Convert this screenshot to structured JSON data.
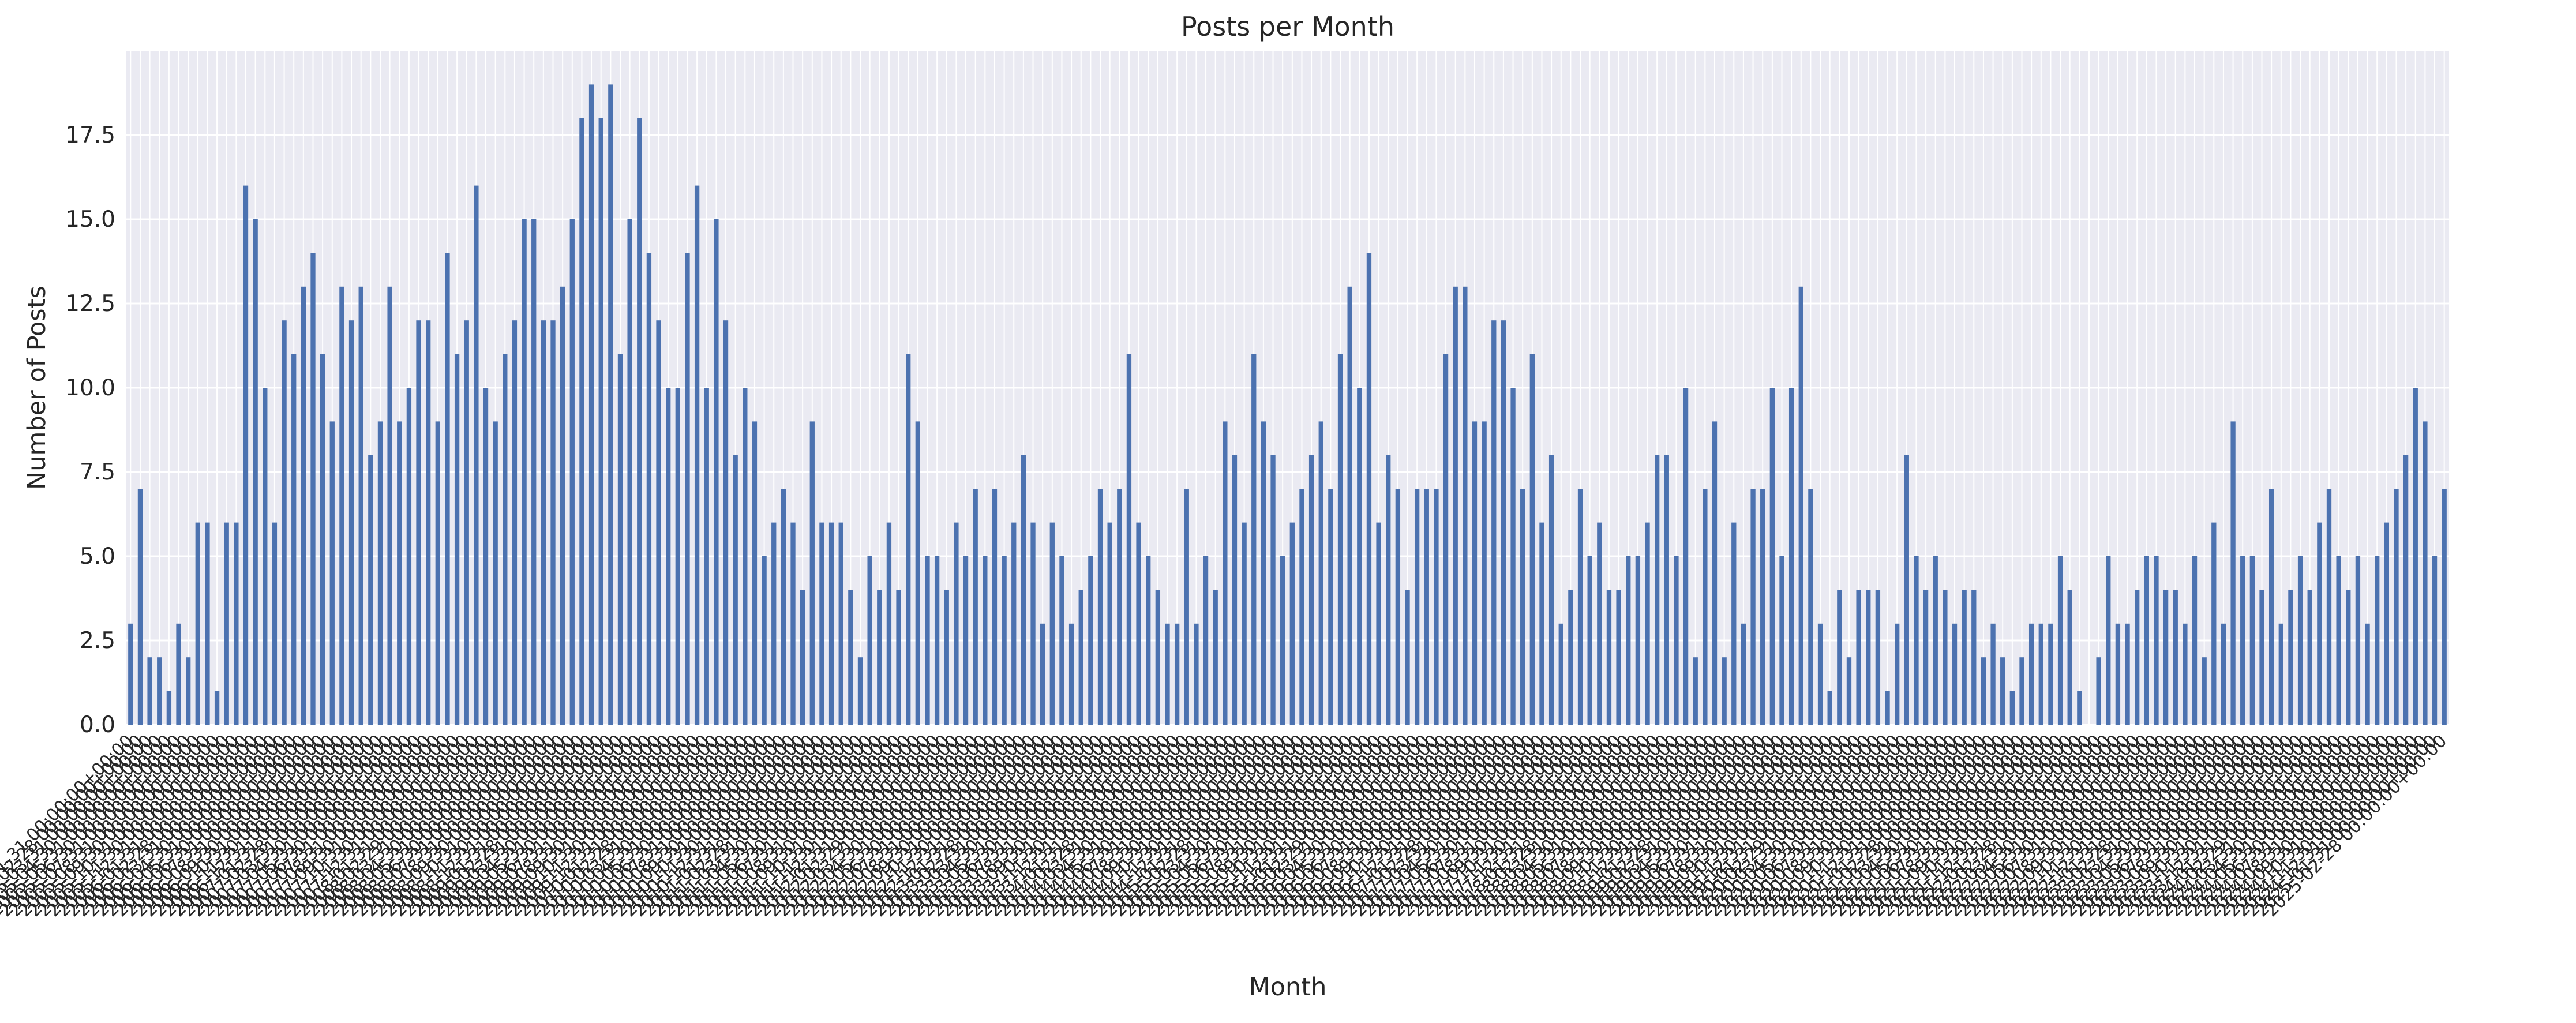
{
  "chart_data": {
    "type": "bar",
    "title": "Posts per Month",
    "xlabel": "Month",
    "ylabel": "Number of Posts",
    "ylim": [
      0,
      20
    ],
    "yticks": [
      0.0,
      2.5,
      5.0,
      7.5,
      10.0,
      12.5,
      15.0,
      17.5
    ],
    "ytick_labels": [
      "0.0",
      "2.5",
      "5.0",
      "7.5",
      "10.0",
      "12.5",
      "15.0",
      "17.5"
    ],
    "x_label_rotation_deg": 45,
    "grid": true,
    "background": "#eaeaf2",
    "bar_color": "#4c72b0",
    "categories": [
      "2005-01-31 00:00:00+00:00",
      "2005-02-28 00:00:00+00:00",
      "2005-03-31 00:00:00+00:00",
      "2005-04-30 00:00:00+00:00",
      "2005-05-31 00:00:00+00:00",
      "2005-06-30 00:00:00+00:00",
      "2005-07-31 00:00:00+00:00",
      "2005-08-31 00:00:00+00:00",
      "2005-09-30 00:00:00+00:00",
      "2005-10-31 00:00:00+00:00",
      "2005-11-30 00:00:00+00:00",
      "2005-12-31 00:00:00+00:00",
      "2006-01-31 00:00:00+00:00",
      "2006-02-28 00:00:00+00:00",
      "2006-03-31 00:00:00+00:00",
      "2006-04-30 00:00:00+00:00",
      "2006-05-31 00:00:00+00:00",
      "2006-06-30 00:00:00+00:00",
      "2006-07-31 00:00:00+00:00",
      "2006-08-31 00:00:00+00:00",
      "2006-09-30 00:00:00+00:00",
      "2006-10-31 00:00:00+00:00",
      "2006-11-30 00:00:00+00:00",
      "2006-12-31 00:00:00+00:00",
      "2007-01-31 00:00:00+00:00",
      "2007-02-28 00:00:00+00:00",
      "2007-03-31 00:00:00+00:00",
      "2007-04-30 00:00:00+00:00",
      "2007-05-31 00:00:00+00:00",
      "2007-06-30 00:00:00+00:00",
      "2007-07-31 00:00:00+00:00",
      "2007-08-31 00:00:00+00:00",
      "2007-09-30 00:00:00+00:00",
      "2007-10-31 00:00:00+00:00",
      "2007-11-30 00:00:00+00:00",
      "2007-12-31 00:00:00+00:00",
      "2008-01-31 00:00:00+00:00",
      "2008-02-29 00:00:00+00:00",
      "2008-03-31 00:00:00+00:00",
      "2008-04-30 00:00:00+00:00",
      "2008-05-31 00:00:00+00:00",
      "2008-06-30 00:00:00+00:00",
      "2008-07-31 00:00:00+00:00",
      "2008-08-31 00:00:00+00:00",
      "2008-09-30 00:00:00+00:00",
      "2008-10-31 00:00:00+00:00",
      "2008-11-30 00:00:00+00:00",
      "2008-12-31 00:00:00+00:00",
      "2009-01-31 00:00:00+00:00",
      "2009-02-28 00:00:00+00:00",
      "2009-03-31 00:00:00+00:00",
      "2009-04-30 00:00:00+00:00",
      "2009-05-31 00:00:00+00:00",
      "2009-06-30 00:00:00+00:00",
      "2009-07-31 00:00:00+00:00",
      "2009-08-31 00:00:00+00:00",
      "2009-09-30 00:00:00+00:00",
      "2009-10-31 00:00:00+00:00",
      "2009-11-30 00:00:00+00:00",
      "2009-12-31 00:00:00+00:00",
      "2010-01-31 00:00:00+00:00",
      "2010-02-28 00:00:00+00:00",
      "2010-03-31 00:00:00+00:00",
      "2010-04-30 00:00:00+00:00",
      "2010-05-31 00:00:00+00:00",
      "2010-06-30 00:00:00+00:00",
      "2010-07-31 00:00:00+00:00",
      "2010-08-31 00:00:00+00:00",
      "2010-09-30 00:00:00+00:00",
      "2010-10-31 00:00:00+00:00",
      "2010-11-30 00:00:00+00:00",
      "2010-12-31 00:00:00+00:00",
      "2011-01-31 00:00:00+00:00",
      "2011-02-28 00:00:00+00:00",
      "2011-03-31 00:00:00+00:00",
      "2011-04-30 00:00:00+00:00",
      "2011-05-31 00:00:00+00:00",
      "2011-06-30 00:00:00+00:00",
      "2011-07-31 00:00:00+00:00",
      "2011-08-31 00:00:00+00:00",
      "2011-09-30 00:00:00+00:00",
      "2011-10-31 00:00:00+00:00",
      "2011-11-30 00:00:00+00:00",
      "2011-12-31 00:00:00+00:00",
      "2012-01-31 00:00:00+00:00",
      "2012-02-29 00:00:00+00:00",
      "2012-03-31 00:00:00+00:00",
      "2012-04-30 00:00:00+00:00",
      "2012-05-31 00:00:00+00:00",
      "2012-06-30 00:00:00+00:00",
      "2012-07-31 00:00:00+00:00",
      "2012-08-31 00:00:00+00:00",
      "2012-09-30 00:00:00+00:00",
      "2012-10-31 00:00:00+00:00",
      "2012-11-30 00:00:00+00:00",
      "2012-12-31 00:00:00+00:00",
      "2013-01-31 00:00:00+00:00",
      "2013-02-28 00:00:00+00:00",
      "2013-03-31 00:00:00+00:00",
      "2013-04-30 00:00:00+00:00",
      "2013-05-31 00:00:00+00:00",
      "2013-06-30 00:00:00+00:00",
      "2013-07-31 00:00:00+00:00",
      "2013-08-31 00:00:00+00:00",
      "2013-09-30 00:00:00+00:00",
      "2013-10-31 00:00:00+00:00",
      "2013-11-30 00:00:00+00:00",
      "2013-12-31 00:00:00+00:00",
      "2014-01-31 00:00:00+00:00",
      "2014-02-28 00:00:00+00:00",
      "2014-03-31 00:00:00+00:00",
      "2014-04-30 00:00:00+00:00",
      "2014-05-31 00:00:00+00:00",
      "2014-06-30 00:00:00+00:00",
      "2014-07-31 00:00:00+00:00",
      "2014-08-31 00:00:00+00:00",
      "2014-09-30 00:00:00+00:00",
      "2014-10-31 00:00:00+00:00",
      "2014-11-30 00:00:00+00:00",
      "2014-12-31 00:00:00+00:00",
      "2015-01-31 00:00:00+00:00",
      "2015-02-28 00:00:00+00:00",
      "2015-03-31 00:00:00+00:00",
      "2015-04-30 00:00:00+00:00",
      "2015-05-31 00:00:00+00:00",
      "2015-06-30 00:00:00+00:00",
      "2015-07-31 00:00:00+00:00",
      "2015-08-31 00:00:00+00:00",
      "2015-09-30 00:00:00+00:00",
      "2015-10-31 00:00:00+00:00",
      "2015-11-30 00:00:00+00:00",
      "2015-12-31 00:00:00+00:00",
      "2016-01-31 00:00:00+00:00",
      "2016-02-29 00:00:00+00:00",
      "2016-03-31 00:00:00+00:00",
      "2016-04-30 00:00:00+00:00",
      "2016-05-31 00:00:00+00:00",
      "2016-06-30 00:00:00+00:00",
      "2016-07-31 00:00:00+00:00",
      "2016-08-31 00:00:00+00:00",
      "2016-09-30 00:00:00+00:00",
      "2016-10-31 00:00:00+00:00",
      "2016-11-30 00:00:00+00:00",
      "2016-12-31 00:00:00+00:00",
      "2017-01-31 00:00:00+00:00",
      "2017-02-28 00:00:00+00:00",
      "2017-03-31 00:00:00+00:00",
      "2017-04-30 00:00:00+00:00",
      "2017-05-31 00:00:00+00:00",
      "2017-06-30 00:00:00+00:00",
      "2017-07-31 00:00:00+00:00",
      "2017-08-31 00:00:00+00:00",
      "2017-09-30 00:00:00+00:00",
      "2017-10-31 00:00:00+00:00",
      "2017-11-30 00:00:00+00:00",
      "2017-12-31 00:00:00+00:00",
      "2018-01-31 00:00:00+00:00",
      "2018-02-28 00:00:00+00:00",
      "2018-03-31 00:00:00+00:00",
      "2018-04-30 00:00:00+00:00",
      "2018-05-31 00:00:00+00:00",
      "2018-06-30 00:00:00+00:00",
      "2018-07-31 00:00:00+00:00",
      "2018-08-31 00:00:00+00:00",
      "2018-09-30 00:00:00+00:00",
      "2018-10-31 00:00:00+00:00",
      "2018-11-30 00:00:00+00:00",
      "2018-12-31 00:00:00+00:00",
      "2019-01-31 00:00:00+00:00",
      "2019-02-28 00:00:00+00:00",
      "2019-03-31 00:00:00+00:00",
      "2019-04-30 00:00:00+00:00",
      "2019-05-31 00:00:00+00:00",
      "2019-06-30 00:00:00+00:00",
      "2019-07-31 00:00:00+00:00",
      "2019-08-31 00:00:00+00:00",
      "2019-09-30 00:00:00+00:00",
      "2019-10-31 00:00:00+00:00",
      "2019-11-30 00:00:00+00:00",
      "2019-12-31 00:00:00+00:00",
      "2020-01-31 00:00:00+00:00",
      "2020-02-29 00:00:00+00:00",
      "2020-03-31 00:00:00+00:00",
      "2020-04-30 00:00:00+00:00",
      "2020-05-31 00:00:00+00:00",
      "2020-06-30 00:00:00+00:00",
      "2020-07-31 00:00:00+00:00",
      "2020-08-31 00:00:00+00:00",
      "2020-09-30 00:00:00+00:00",
      "2020-10-31 00:00:00+00:00",
      "2020-11-30 00:00:00+00:00",
      "2020-12-31 00:00:00+00:00",
      "2021-01-31 00:00:00+00:00",
      "2021-02-28 00:00:00+00:00",
      "2021-03-31 00:00:00+00:00",
      "2021-04-30 00:00:00+00:00",
      "2021-05-31 00:00:00+00:00",
      "2021-06-30 00:00:00+00:00",
      "2021-07-31 00:00:00+00:00",
      "2021-08-31 00:00:00+00:00",
      "2021-09-30 00:00:00+00:00",
      "2021-10-31 00:00:00+00:00",
      "2021-11-30 00:00:00+00:00",
      "2021-12-31 00:00:00+00:00",
      "2022-01-31 00:00:00+00:00",
      "2022-02-28 00:00:00+00:00",
      "2022-03-31 00:00:00+00:00",
      "2022-04-30 00:00:00+00:00",
      "2022-05-31 00:00:00+00:00",
      "2022-06-30 00:00:00+00:00",
      "2022-07-31 00:00:00+00:00",
      "2022-08-31 00:00:00+00:00",
      "2022-09-30 00:00:00+00:00",
      "2022-10-31 00:00:00+00:00",
      "2022-11-30 00:00:00+00:00",
      "2022-12-31 00:00:00+00:00",
      "2023-01-31 00:00:00+00:00",
      "2023-02-28 00:00:00+00:00",
      "2023-03-31 00:00:00+00:00",
      "2023-04-30 00:00:00+00:00",
      "2023-05-31 00:00:00+00:00",
      "2023-06-30 00:00:00+00:00",
      "2023-07-31 00:00:00+00:00",
      "2023-08-31 00:00:00+00:00",
      "2023-09-30 00:00:00+00:00",
      "2023-10-31 00:00:00+00:00",
      "2023-11-30 00:00:00+00:00",
      "2023-12-31 00:00:00+00:00",
      "2024-01-31 00:00:00+00:00",
      "2024-02-29 00:00:00+00:00",
      "2024-03-31 00:00:00+00:00",
      "2024-04-30 00:00:00+00:00",
      "2024-05-31 00:00:00+00:00",
      "2024-06-30 00:00:00+00:00",
      "2024-07-31 00:00:00+00:00",
      "2024-08-31 00:00:00+00:00",
      "2024-09-30 00:00:00+00:00",
      "2024-10-31 00:00:00+00:00",
      "2024-11-30 00:00:00+00:00",
      "2024-12-31 00:00:00+00:00",
      "2025-01-31 00:00:00+00:00",
      "2025-02-28 00:00:00+00:00"
    ],
    "values": [
      3,
      7,
      2,
      2,
      1,
      3,
      2,
      6,
      6,
      1,
      6,
      6,
      16,
      15,
      10,
      6,
      12,
      11,
      13,
      14,
      11,
      9,
      13,
      12,
      13,
      8,
      9,
      13,
      9,
      10,
      12,
      12,
      9,
      14,
      11,
      12,
      16,
      10,
      9,
      11,
      12,
      15,
      15,
      12,
      12,
      13,
      15,
      18,
      19,
      18,
      19,
      11,
      15,
      18,
      14,
      12,
      10,
      10,
      14,
      16,
      10,
      15,
      12,
      8,
      10,
      9,
      5,
      6,
      7,
      6,
      4,
      9,
      6,
      6,
      6,
      4,
      2,
      5,
      4,
      6,
      4,
      11,
      9,
      5,
      5,
      4,
      6,
      5,
      7,
      5,
      7,
      5,
      6,
      8,
      6,
      3,
      6,
      5,
      3,
      4,
      5,
      7,
      6,
      7,
      11,
      6,
      5,
      4,
      3,
      3,
      7,
      3,
      5,
      4,
      9,
      8,
      6,
      11,
      9,
      8,
      5,
      6,
      7,
      8,
      9,
      7,
      11,
      13,
      10,
      14,
      6,
      8,
      7,
      4,
      7,
      7,
      7,
      11,
      13,
      13,
      9,
      9,
      12,
      12,
      10,
      7,
      11,
      6,
      8,
      3,
      4,
      7,
      5,
      6,
      4,
      4,
      5,
      5,
      6,
      8,
      8,
      5,
      10,
      2,
      7,
      9,
      2,
      6,
      3,
      7,
      7,
      10,
      5,
      10,
      13,
      7,
      3,
      1,
      4,
      2,
      4,
      4,
      4,
      1,
      3,
      8,
      5,
      4,
      5,
      4,
      3,
      4,
      4,
      2,
      3,
      2,
      1,
      2,
      3,
      3,
      3,
      5,
      4,
      1,
      0,
      2,
      5,
      3,
      3,
      4,
      5,
      5,
      4,
      4,
      3,
      5,
      2,
      6,
      3,
      9,
      5,
      5,
      4,
      7,
      3,
      4,
      5,
      4,
      6,
      7,
      5,
      4,
      5,
      3,
      5,
      6,
      7,
      8,
      10,
      9,
      5,
      7
    ]
  }
}
